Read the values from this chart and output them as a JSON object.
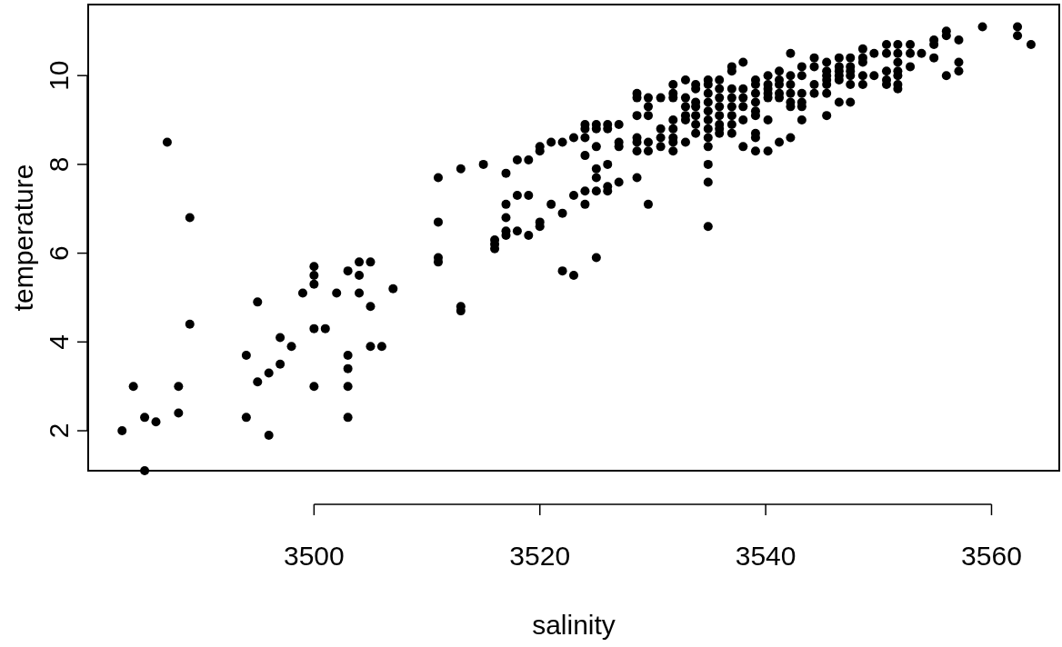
{
  "chart_data": {
    "type": "scatter",
    "xlabel": "salinity",
    "ylabel": "temperature",
    "xlim": [
      3480,
      3566
    ],
    "ylim": [
      1.1,
      11.6
    ],
    "xticks": [
      3500,
      3520,
      3540,
      3560
    ],
    "yticks": [
      2,
      4,
      6,
      8,
      10
    ],
    "grid": false,
    "marker": "circle",
    "series": [
      {
        "color": "#000000",
        "x": [
          3483,
          3484,
          3485,
          3485,
          3486,
          3487,
          3488,
          3488,
          3489,
          3489,
          3494,
          3494,
          3495,
          3495,
          3496,
          3496,
          3497,
          3497,
          3498,
          3499,
          3500,
          3500,
          3500,
          3500,
          3500,
          3501,
          3502,
          3503,
          3503,
          3503,
          3503,
          3503,
          3504,
          3504,
          3504,
          3505,
          3505,
          3505,
          3506,
          3507,
          3511,
          3511,
          3511,
          3511,
          3513,
          3513,
          3513,
          3515,
          3516,
          3516,
          3516,
          3517,
          3517,
          3517,
          3517,
          3517,
          3518,
          3518,
          3518,
          3519,
          3519,
          3519,
          3520,
          3520,
          3520,
          3520,
          3521,
          3521,
          3522,
          3522,
          3522,
          3523,
          3523,
          3523,
          3524,
          3524,
          3524,
          3524,
          3524,
          3524,
          3525,
          3525,
          3525,
          3525,
          3525,
          3525,
          3525,
          3526,
          3526,
          3526,
          3526,
          3526,
          3527,
          3527,
          3527,
          3527,
          3528.6,
          3528.6,
          3528.6,
          3528.6,
          3528.6,
          3528.6,
          3528.6,
          3529.6,
          3529.6,
          3529.6,
          3529.6,
          3529.6,
          3529.6,
          3530.7,
          3530.7,
          3530.7,
          3530.7,
          3531.8,
          3531.8,
          3531.8,
          3531.8,
          3531.8,
          3531.8,
          3531.8,
          3531.8,
          3532.9,
          3532.9,
          3532.9,
          3532.9,
          3532.9,
          3532.9,
          3533.8,
          3533.8,
          3533.8,
          3533.8,
          3533.8,
          3533.8,
          3533.8,
          3534.9,
          3534.9,
          3534.9,
          3534.9,
          3534.9,
          3534.9,
          3534.9,
          3534.9,
          3534.9,
          3534.9,
          3534.9,
          3534.9,
          3535.9,
          3535.9,
          3535.9,
          3535.9,
          3535.9,
          3535.9,
          3535.9,
          3535.9,
          3537,
          3537,
          3537,
          3537,
          3537,
          3537,
          3537,
          3537,
          3538,
          3538,
          3538,
          3538,
          3538,
          3538,
          3539.1,
          3539.1,
          3539.1,
          3539.1,
          3539.1,
          3539.1,
          3539.1,
          3539.1,
          3539.1,
          3540.2,
          3540.2,
          3540.2,
          3540.2,
          3540.2,
          3540.2,
          3540.2,
          3541.2,
          3541.2,
          3541.2,
          3541.2,
          3541.2,
          3541.2,
          3542.2,
          3542.2,
          3542.2,
          3542.2,
          3542.2,
          3542.2,
          3542.2,
          3543.2,
          3543.2,
          3543.2,
          3543.2,
          3543.2,
          3543.2,
          3544.3,
          3544.3,
          3544.3,
          3544.3,
          3545.4,
          3545.4,
          3545.4,
          3545.4,
          3545.4,
          3545.4,
          3545.4,
          3546.5,
          3546.5,
          3546.5,
          3546.5,
          3546.5,
          3546.5,
          3547.5,
          3547.5,
          3547.5,
          3547.5,
          3547.5,
          3547.5,
          3548.6,
          3548.6,
          3548.6,
          3548.6,
          3548.6,
          3549.6,
          3549.6,
          3550.7,
          3550.7,
          3550.7,
          3550.7,
          3550.7,
          3551.7,
          3551.7,
          3551.7,
          3551.7,
          3551.7,
          3551.7,
          3551.7,
          3552.8,
          3552.8,
          3552.8,
          3553.8,
          3554.9,
          3554.9,
          3554.9,
          3556,
          3556,
          3556,
          3557.1,
          3557.1,
          3557.1,
          3559.2,
          3562.3,
          3562.3,
          3563.5
        ],
        "values": [
          2.0,
          3.0,
          2.3,
          1.1,
          2.2,
          8.5,
          3.0,
          2.4,
          6.8,
          4.4,
          3.7,
          2.3,
          4.9,
          3.1,
          3.3,
          1.9,
          3.5,
          4.1,
          3.9,
          5.1,
          4.3,
          3.0,
          5.7,
          5.5,
          5.3,
          4.3,
          5.1,
          5.6,
          3.7,
          3.4,
          3.0,
          2.3,
          5.8,
          5.5,
          5.1,
          5.8,
          4.8,
          3.9,
          3.9,
          5.2,
          7.7,
          6.7,
          5.9,
          5.8,
          7.9,
          4.8,
          4.7,
          8.0,
          6.3,
          6.2,
          6.1,
          7.8,
          7.1,
          6.8,
          6.5,
          6.4,
          8.1,
          7.3,
          6.5,
          8.1,
          7.3,
          6.4,
          8.4,
          8.3,
          6.7,
          6.6,
          8.5,
          7.1,
          8.5,
          6.9,
          5.6,
          8.6,
          7.3,
          5.5,
          8.9,
          8.8,
          8.6,
          8.2,
          7.4,
          7.1,
          8.9,
          8.8,
          8.4,
          7.9,
          7.7,
          7.4,
          5.9,
          8.9,
          8.8,
          8.0,
          7.5,
          7.4,
          8.9,
          8.5,
          8.4,
          7.6,
          9.6,
          9.5,
          9.1,
          8.6,
          8.5,
          8.3,
          7.7,
          9.5,
          9.3,
          9.1,
          8.5,
          8.3,
          7.1,
          9.5,
          8.8,
          8.6,
          8.4,
          9.8,
          9.6,
          9.5,
          9.0,
          8.8,
          8.6,
          8.5,
          8.3,
          9.9,
          9.5,
          9.3,
          9.1,
          9.0,
          8.5,
          9.8,
          9.7,
          9.4,
          9.3,
          9.1,
          8.9,
          8.7,
          9.9,
          9.8,
          9.6,
          9.4,
          9.2,
          9.0,
          8.8,
          8.6,
          8.4,
          8.0,
          7.6,
          6.6,
          9.9,
          9.7,
          9.5,
          9.3,
          9.1,
          8.9,
          8.8,
          8.7,
          10.2,
          10.1,
          9.7,
          9.5,
          9.3,
          9.1,
          8.9,
          8.7,
          10.3,
          9.7,
          9.5,
          9.3,
          9.0,
          8.4,
          9.9,
          9.8,
          9.6,
          9.4,
          9.2,
          9.1,
          8.7,
          8.6,
          8.3,
          10.0,
          9.8,
          9.7,
          9.6,
          9.5,
          9.0,
          8.3,
          10.1,
          9.9,
          9.8,
          9.6,
          9.5,
          8.5,
          10.5,
          10.0,
          9.8,
          9.6,
          9.4,
          9.3,
          8.6,
          10.2,
          10.0,
          9.6,
          9.4,
          9.3,
          9.0,
          10.4,
          10.2,
          9.8,
          9.6,
          10.3,
          10.1,
          10.0,
          9.9,
          9.8,
          9.6,
          9.1,
          10.4,
          10.2,
          10.1,
          10.0,
          9.9,
          9.4,
          10.4,
          10.2,
          10.1,
          10.0,
          9.8,
          9.4,
          10.6,
          10.4,
          10.3,
          10.0,
          9.8,
          10.5,
          10.0,
          10.7,
          10.5,
          10.1,
          9.9,
          9.8,
          10.7,
          10.5,
          10.3,
          10.1,
          10.0,
          9.8,
          9.7,
          10.7,
          10.5,
          10.2,
          10.5,
          10.8,
          10.7,
          10.4,
          11.0,
          10.9,
          10.0,
          10.8,
          10.3,
          10.1,
          11.1,
          11.1,
          10.9,
          10.7
        ]
      }
    ]
  }
}
